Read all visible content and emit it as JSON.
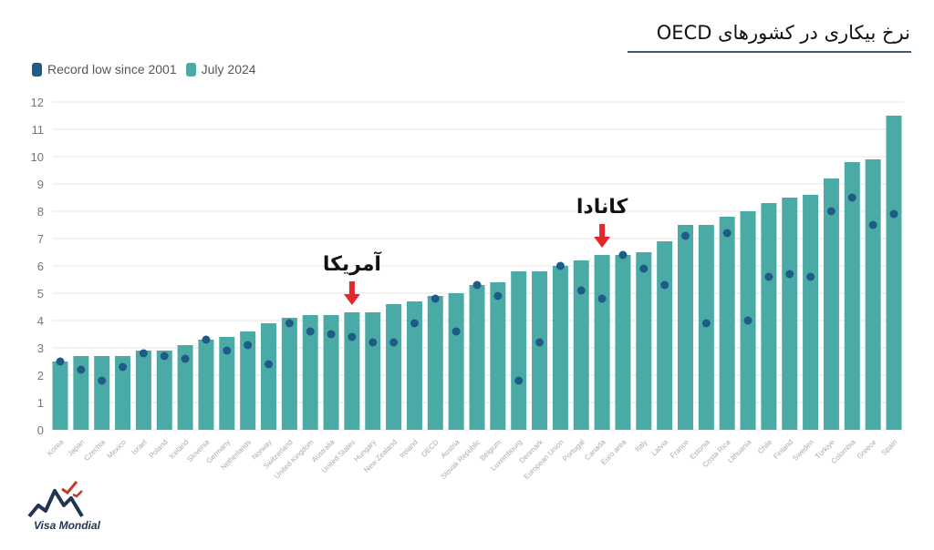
{
  "title": "نرخ بیکاری در کشورهای OECD",
  "logo": {
    "text": "Visa Mondial"
  },
  "colors": {
    "bar": "#4aaba6",
    "dot": "#1e5c87",
    "arrow": "#e5262b",
    "grid": "#e6e6e6"
  },
  "annotations": [
    {
      "label": "آمریکا",
      "category": "United States",
      "icon": "arrow-down-icon"
    },
    {
      "label": "کانادا",
      "category": "Canada",
      "icon": "arrow-down-icon"
    }
  ],
  "chart_data": {
    "type": "bar",
    "legend_placement": "top-left",
    "grid": true,
    "ylim": [
      0,
      12
    ],
    "yticks": [
      0,
      1,
      2,
      3,
      4,
      5,
      6,
      7,
      8,
      9,
      10,
      11,
      12
    ],
    "categories": [
      "Korea",
      "Japan",
      "Czechia",
      "Mexico",
      "Israel",
      "Poland",
      "Iceland",
      "Slovenia",
      "Germany",
      "Netherlands",
      "Norway",
      "Switzerland",
      "United Kingdom",
      "Australia",
      "United States",
      "Hungary",
      "New Zealand",
      "Ireland",
      "OECD",
      "Austria",
      "Slovak Republic",
      "Belgium",
      "Luxembourg",
      "Denmark",
      "European Union",
      "Portugal",
      "Canada",
      "Euro area",
      "Italy",
      "Latvia",
      "France",
      "Estonia",
      "Costa Rica",
      "Lithuania",
      "Chile",
      "Finland",
      "Sweden",
      "Türkiye",
      "Colombia",
      "Greece",
      "Spain"
    ],
    "series": [
      {
        "name": "Record low since 2001",
        "mark": "dot",
        "values": [
          2.5,
          2.2,
          1.8,
          2.3,
          2.8,
          2.7,
          2.6,
          3.3,
          2.9,
          3.1,
          2.4,
          3.9,
          3.6,
          3.5,
          3.4,
          3.2,
          3.2,
          3.9,
          4.8,
          3.6,
          5.3,
          4.9,
          1.8,
          3.2,
          6.0,
          5.1,
          4.8,
          6.4,
          5.9,
          5.3,
          7.1,
          3.9,
          7.2,
          4.0,
          5.6,
          5.7,
          5.6,
          8.0,
          8.5,
          7.5,
          7.9
        ]
      },
      {
        "name": "July 2024",
        "mark": "bar",
        "values": [
          2.5,
          2.7,
          2.7,
          2.7,
          2.9,
          2.9,
          3.1,
          3.3,
          3.4,
          3.6,
          3.9,
          4.1,
          4.2,
          4.2,
          4.3,
          4.3,
          4.6,
          4.7,
          4.9,
          5.0,
          5.3,
          5.4,
          5.8,
          5.8,
          6.0,
          6.2,
          6.4,
          6.4,
          6.5,
          6.9,
          7.5,
          7.5,
          7.8,
          8.0,
          8.3,
          8.5,
          8.6,
          9.2,
          9.8,
          9.9,
          11.5
        ]
      }
    ]
  }
}
